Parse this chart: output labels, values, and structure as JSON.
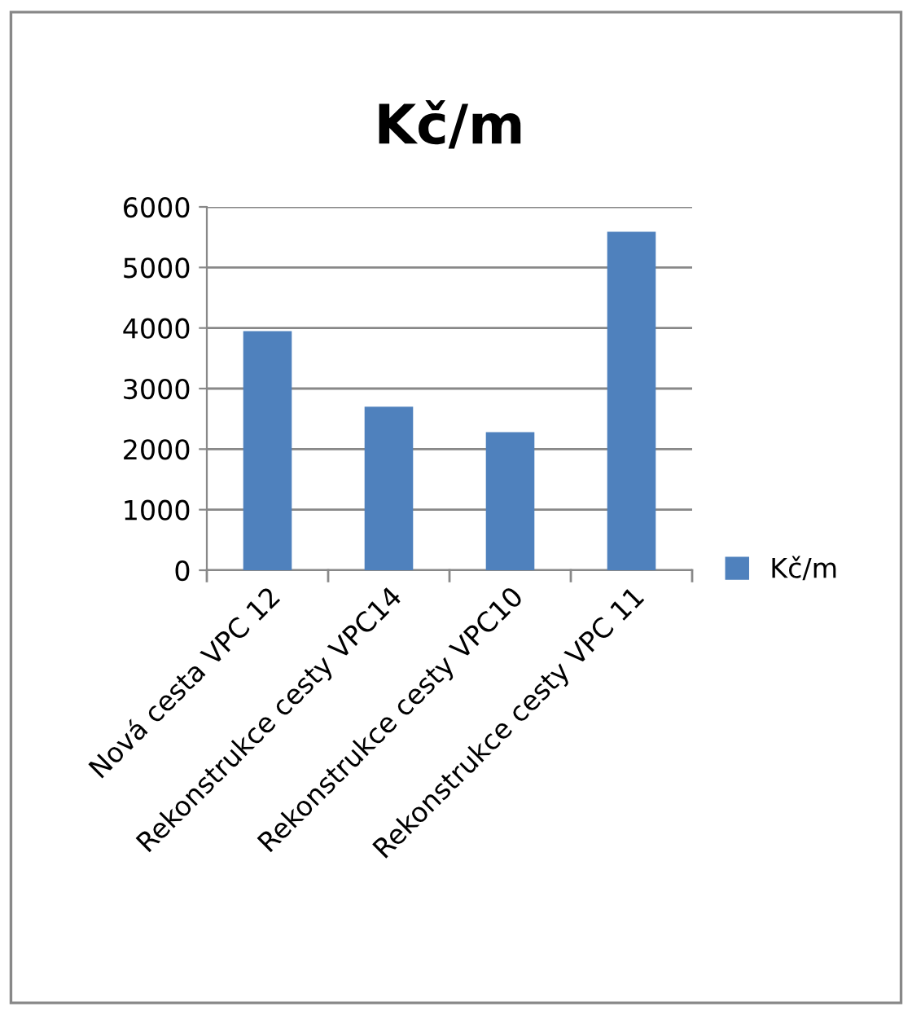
{
  "chart_data": {
    "type": "bar",
    "title": "Kč/m",
    "categories": [
      "Nová cesta VPC 12",
      "Rekonstrukce cesty VPC14",
      "Rekonstrukce cesty VPC10",
      "Rekonstrukce cesty VPC 11"
    ],
    "series": [
      {
        "name": "Kč/m",
        "color": "#4f81bd",
        "values": [
          3950,
          2700,
          2280,
          5590
        ]
      }
    ],
    "ylim": [
      0,
      6000
    ],
    "yticks": [
      0,
      1000,
      2000,
      3000,
      4000,
      5000,
      6000
    ],
    "grid": "y",
    "legend": "right"
  }
}
